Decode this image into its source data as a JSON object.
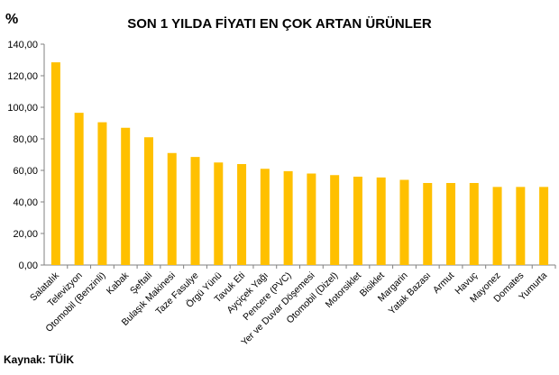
{
  "chart_data": {
    "type": "bar",
    "title": "SON 1 YILDA FİYATI EN ÇOK ARTAN ÜRÜNLER",
    "ylabel": "%",
    "xlabel": "",
    "ylim": [
      0,
      140
    ],
    "yticks": [
      "0,00",
      "20,00",
      "40,00",
      "60,00",
      "80,00",
      "100,00",
      "120,00",
      "140,00"
    ],
    "ytick_values": [
      0,
      20,
      40,
      60,
      80,
      100,
      120,
      140
    ],
    "grid": false,
    "legend": "none",
    "bar_color": "#FFC000",
    "categories": [
      "Salatalık",
      "Televizyon",
      "Otomobil (Benzinli)",
      "Kabak",
      "Şeftali",
      "Bulaşık Makinesi",
      "Taze Fasulye",
      "Örgü Yünü",
      "Tavuk Eti",
      "Ayçiçek Yağı",
      "Pencere (PVC)",
      "Yer ve Duvar Döşemesi",
      "Otomobil (Dizel)",
      "Motorsiklet",
      "Bisiklet",
      "Margarin",
      "Yatak Bazası",
      "Armut",
      "Havuç",
      "Mayonez",
      "Domates",
      "Yumurta"
    ],
    "values": [
      128.5,
      96.5,
      90.5,
      87.0,
      81.0,
      71.0,
      68.5,
      65.0,
      64.0,
      61.0,
      59.5,
      58.0,
      57.0,
      56.0,
      55.5,
      54.0,
      52.0,
      52.0,
      52.0,
      49.5,
      49.5,
      49.5
    ]
  },
  "source": "Kaynak: TÜİK"
}
